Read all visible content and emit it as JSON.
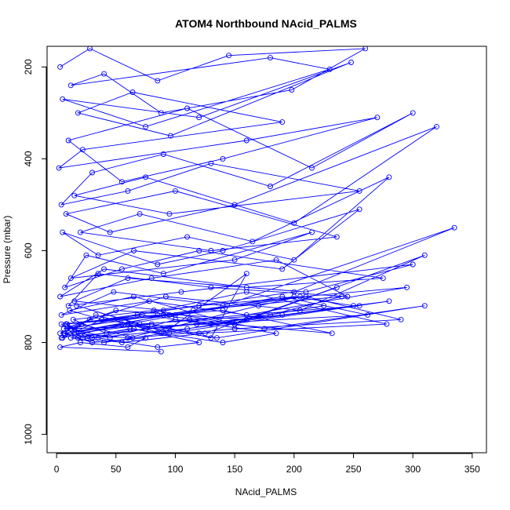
{
  "chart_data": {
    "type": "line",
    "title": "ATOM4 Northbound NAcid_PALMS",
    "xlabel": "NAcid_PALMS",
    "ylabel": "Pressure (mbar)",
    "xlim": [
      -8,
      362
    ],
    "ylim": [
      1040,
      155
    ],
    "y_axis_inverted": true,
    "x_ticks": [
      0,
      50,
      100,
      150,
      200,
      250,
      300,
      350
    ],
    "y_ticks": [
      200,
      400,
      600,
      800,
      1000
    ],
    "grid": false,
    "legend": "none",
    "series_color": "#0000ff",
    "marker": "open-circle",
    "series": [
      {
        "x": [
          3,
          28,
          85,
          145,
          260,
          198,
          88,
          40,
          12,
          180,
          230,
          75,
          5,
          120,
          248,
          96,
          18,
          64,
          190,
          22,
          2,
          160,
          270,
          140,
          55,
          10,
          110,
          215,
          300,
          180,
          90,
          30,
          4,
          60,
          130,
          255,
          95,
          15,
          75,
          200,
          320,
          150,
          45,
          8,
          100,
          236,
          130,
          20,
          70,
          165,
          280,
          200,
          110,
          35,
          5,
          85,
          140,
          255,
          190,
          65,
          12,
          150,
          215,
          90,
          25,
          7,
          55,
          120,
          275,
          160,
          40,
          3,
          80,
          185,
          245,
          130,
          35,
          10,
          105,
          300,
          210,
          60,
          15,
          90,
          200,
          335,
          140,
          48,
          4,
          78,
          160,
          295,
          120,
          38,
          11,
          65,
          150,
          310,
          205,
          92,
          28,
          6,
          115,
          240,
          180,
          70,
          17,
          95,
          280,
          160,
          50,
          9,
          130,
          225,
          88,
          33,
          4,
          60,
          190,
          262,
          118,
          42,
          14,
          82,
          175,
          310,
          135,
          55,
          7,
          95,
          210,
          290,
          150,
          64,
          21,
          3,
          112,
          255,
          190,
          75,
          26,
          8,
          140,
          232,
          100,
          45,
          12,
          68,
          160,
          278,
          120,
          38,
          5,
          90,
          200,
          250,
          110,
          30,
          9,
          72,
          185,
          140,
          62,
          18,
          4,
          85,
          150,
          236,
          125,
          55,
          22,
          8,
          100,
          205,
          170,
          60,
          15,
          80,
          130,
          160,
          90,
          40,
          12,
          65,
          120,
          85,
          35,
          6,
          30,
          75,
          60,
          20,
          3,
          88
        ],
        "y": [
          200,
          160,
          230,
          175,
          160,
          250,
          300,
          215,
          240,
          180,
          205,
          330,
          270,
          310,
          190,
          350,
          300,
          255,
          320,
          380,
          420,
          360,
          310,
          400,
          450,
          360,
          290,
          420,
          300,
          460,
          390,
          430,
          500,
          470,
          410,
          470,
          520,
          480,
          440,
          540,
          330,
          500,
          560,
          520,
          470,
          570,
          600,
          560,
          520,
          580,
          440,
          620,
          570,
          610,
          560,
          630,
          600,
          510,
          640,
          600,
          660,
          620,
          560,
          650,
          610,
          680,
          640,
          600,
          660,
          680,
          640,
          700,
          660,
          620,
          700,
          680,
          650,
          720,
          690,
          630,
          690,
          660,
          710,
          730,
          690,
          550,
          720,
          690,
          740,
          710,
          740,
          680,
          720,
          750,
          730,
          700,
          760,
          610,
          730,
          700,
          750,
          770,
          730,
          700,
          740,
          760,
          720,
          780,
          710,
          750,
          730,
          770,
          760,
          720,
          780,
          740,
          790,
          760,
          700,
          740,
          760,
          780,
          750,
          730,
          770,
          720,
          790,
          760,
          780,
          740,
          700,
          750,
          770,
          790,
          760,
          780,
          750,
          720,
          740,
          770,
          790,
          760,
          730,
          780,
          750,
          790,
          770,
          740,
          690,
          760,
          780,
          750,
          790,
          740,
          700,
          720,
          770,
          790,
          760,
          740,
          780,
          800,
          770,
          790,
          760,
          740,
          760,
          680,
          780,
          800,
          790,
          760,
          740,
          700,
          720,
          790,
          780,
          760,
          790,
          650,
          780,
          800,
          790,
          770,
          800,
          810,
          790,
          780,
          800,
          790,
          810,
          800,
          810,
          820
        ]
      }
    ]
  }
}
